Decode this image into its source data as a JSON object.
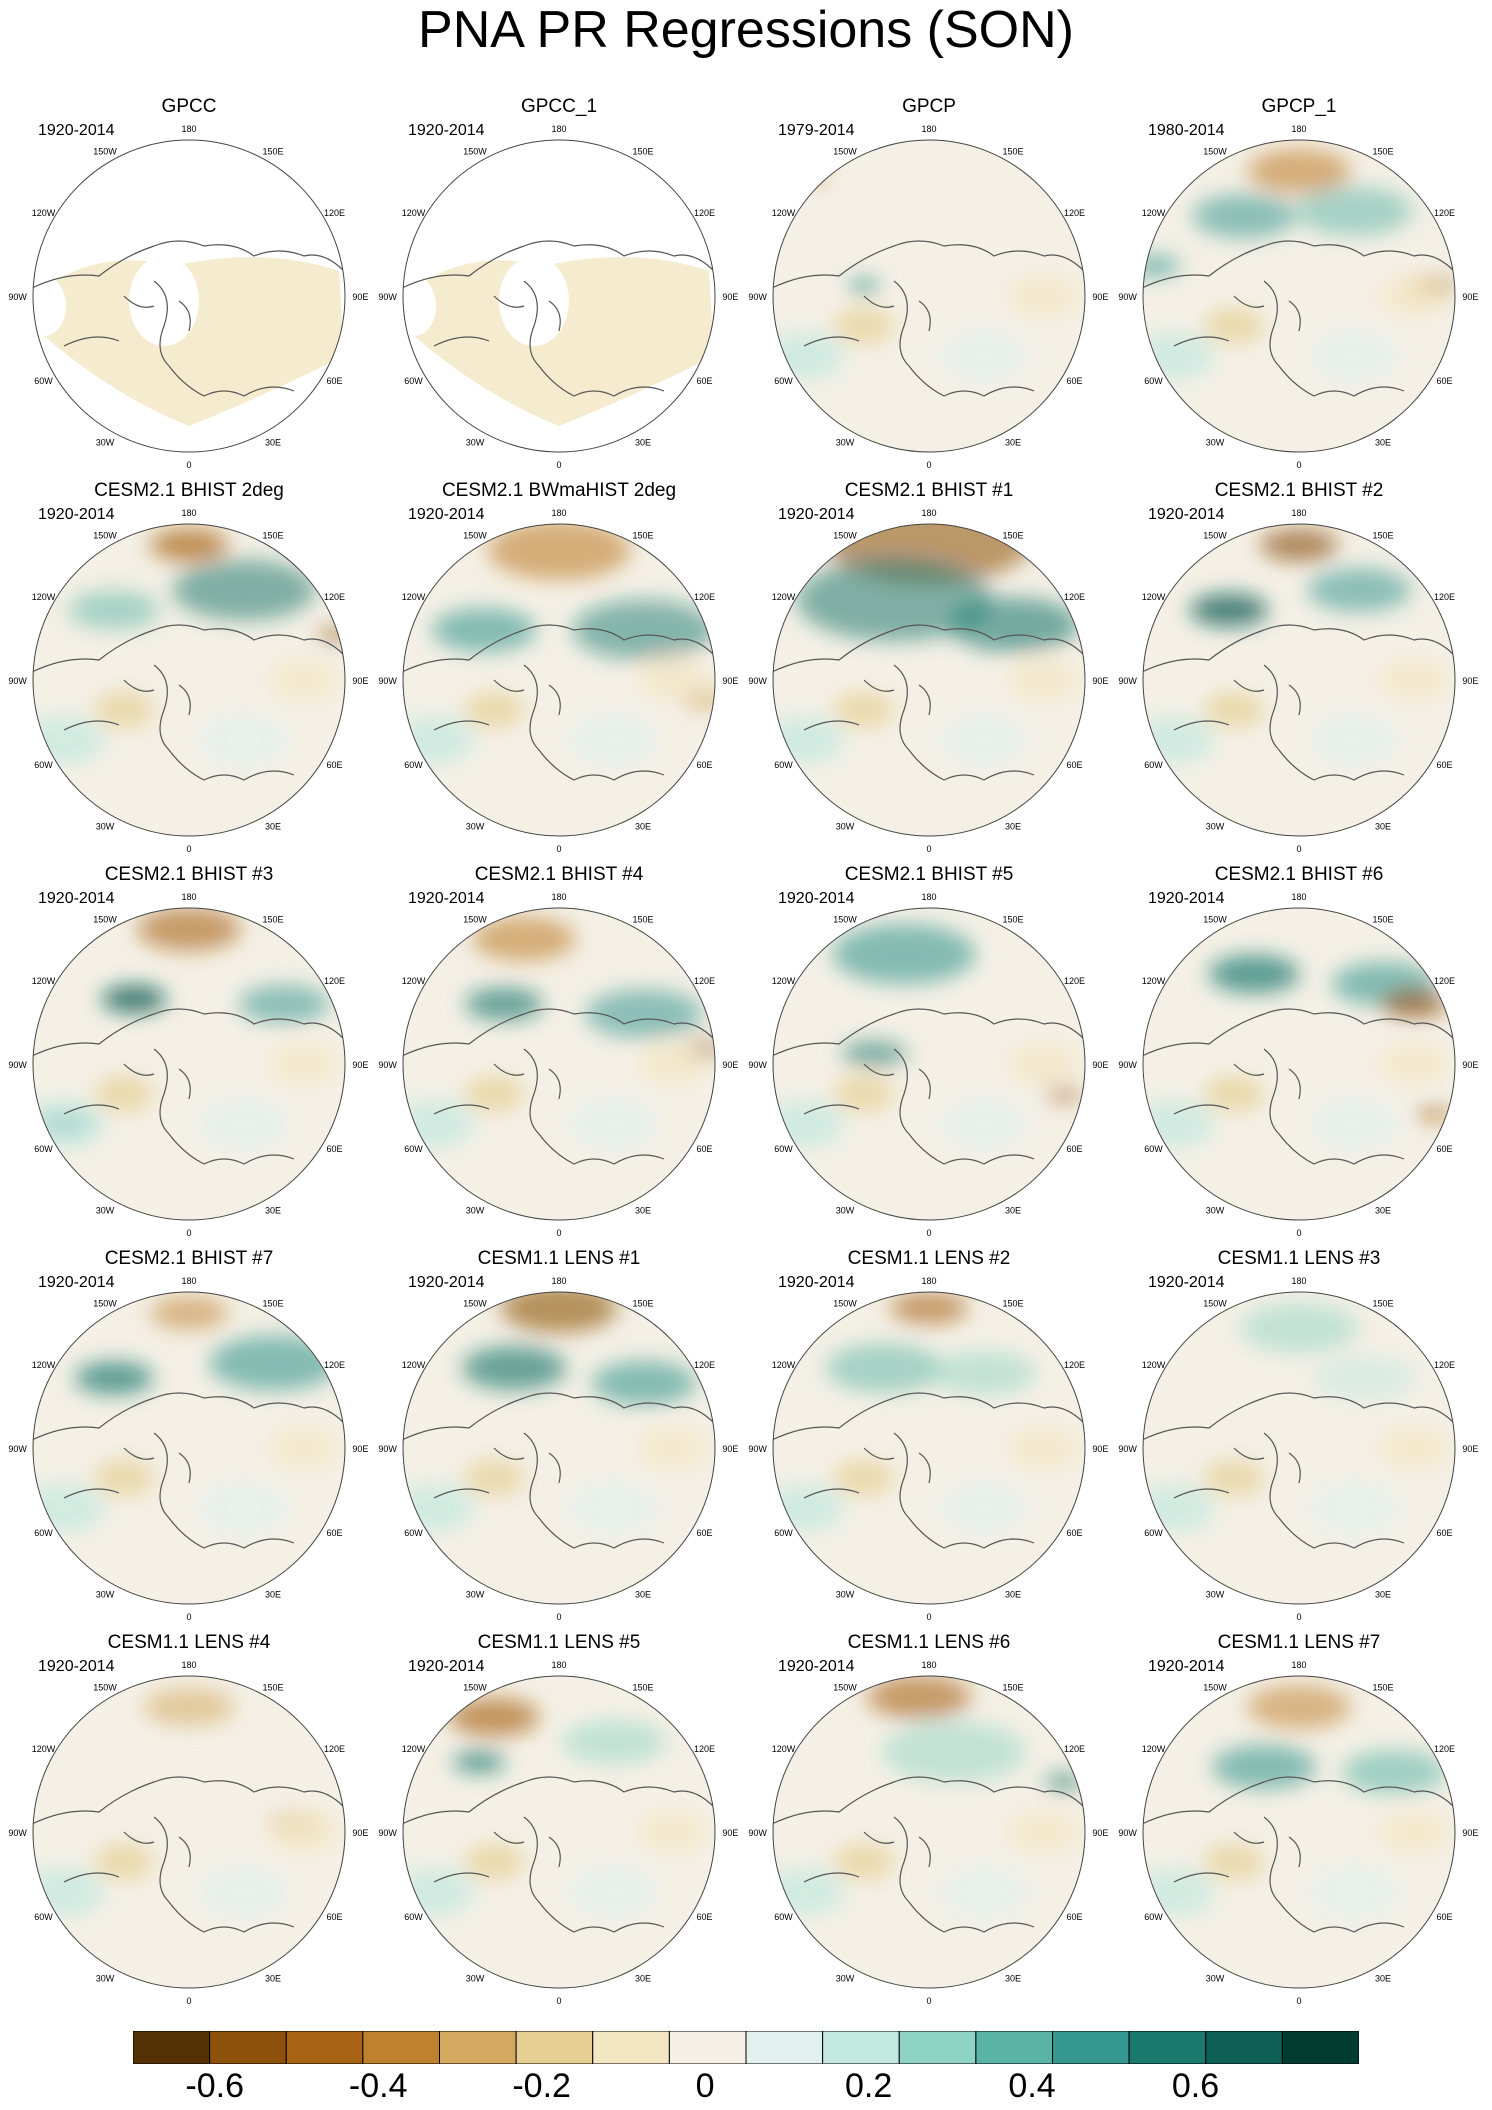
{
  "title": "PNA PR Regressions (SON)",
  "longitude_labels": [
    "180",
    "150E",
    "120E",
    "90E",
    "60E",
    "30E",
    "0",
    "30W",
    "60W",
    "90W",
    "120W",
    "150W"
  ],
  "panels": [
    {
      "title": "GPCC",
      "period": "1920-2014",
      "pattern": 0
    },
    {
      "title": "GPCC_1",
      "period": "1920-2014",
      "pattern": 0
    },
    {
      "title": "GPCP",
      "period": "1979-2014",
      "pattern": 1
    },
    {
      "title": "GPCP_1",
      "period": "1980-2014",
      "pattern": 2
    },
    {
      "title": "CESM2.1 BHIST 2deg",
      "period": "1920-2014",
      "pattern": 3
    },
    {
      "title": "CESM2.1 BWmaHIST 2deg",
      "period": "1920-2014",
      "pattern": 4
    },
    {
      "title": "CESM2.1 BHIST #1",
      "period": "1920-2014",
      "pattern": 5
    },
    {
      "title": "CESM2.1 BHIST #2",
      "period": "1920-2014",
      "pattern": 6
    },
    {
      "title": "CESM2.1 BHIST #3",
      "period": "1920-2014",
      "pattern": 7
    },
    {
      "title": "CESM2.1 BHIST #4",
      "period": "1920-2014",
      "pattern": 8
    },
    {
      "title": "CESM2.1 BHIST #5",
      "period": "1920-2014",
      "pattern": 9
    },
    {
      "title": "CESM2.1 BHIST #6",
      "period": "1920-2014",
      "pattern": 10
    },
    {
      "title": "CESM2.1 BHIST #7",
      "period": "1920-2014",
      "pattern": 11
    },
    {
      "title": "CESM1.1 LENS #1",
      "period": "1920-2014",
      "pattern": 12
    },
    {
      "title": "CESM1.1 LENS #2",
      "period": "1920-2014",
      "pattern": 13
    },
    {
      "title": "CESM1.1 LENS #3",
      "period": "1920-2014",
      "pattern": 14
    },
    {
      "title": "CESM1.1 LENS #4",
      "period": "1920-2014",
      "pattern": 15
    },
    {
      "title": "CESM1.1 LENS #5",
      "period": "1920-2014",
      "pattern": 16
    },
    {
      "title": "CESM1.1 LENS #6",
      "period": "1920-2014",
      "pattern": 17
    },
    {
      "title": "CESM1.1 LENS #7",
      "period": "1920-2014",
      "pattern": 18
    }
  ],
  "colorbar": {
    "colors": [
      "#543005",
      "#8c510a",
      "#a86414",
      "#bf812d",
      "#d4a95f",
      "#e6cf92",
      "#f3e6c2",
      "#f4f0e6",
      "#e2f1ee",
      "#c2e8e0",
      "#8fd3c4",
      "#5ab4a6",
      "#35978f",
      "#1b7a6f",
      "#0f6056",
      "#003c30"
    ],
    "tick_labels": [
      "-0.6",
      "-0.4",
      "-0.2",
      "0",
      "0.2",
      "0.4",
      "0.6"
    ],
    "tick_values": [
      -0.6,
      -0.4,
      -0.2,
      0,
      0.2,
      0.4,
      0.6
    ],
    "boundaries_min": -0.7,
    "boundaries_max": 0.8
  }
}
